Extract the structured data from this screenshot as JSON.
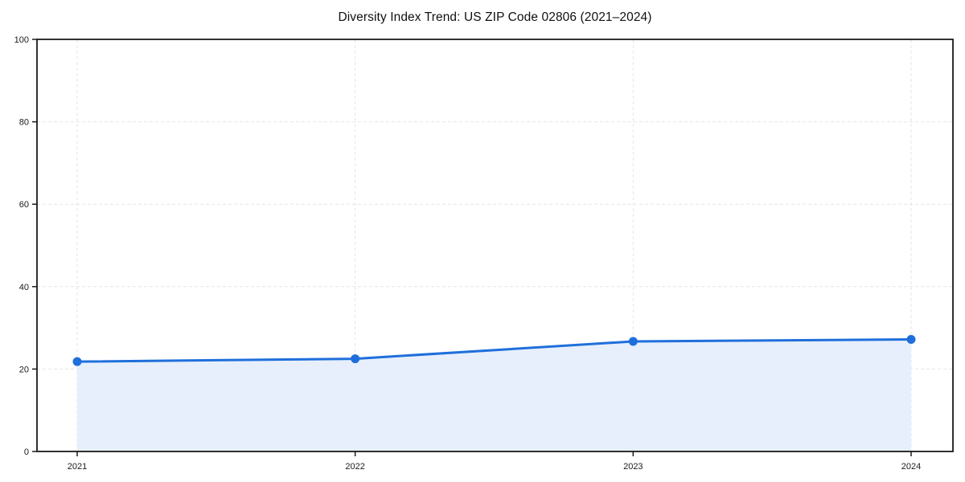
{
  "chart_data": {
    "type": "line",
    "title": "Diversity Index Trend: US ZIP Code 02806 (2021–2024)",
    "x": [
      2021,
      2022,
      2023,
      2024
    ],
    "series": [
      {
        "name": "Diversity Index",
        "values": [
          21.8,
          22.5,
          26.7,
          27.2
        ]
      }
    ],
    "ylim": [
      0,
      100
    ],
    "yticks": [
      0,
      20,
      40,
      60,
      80,
      100
    ],
    "grid": true,
    "grid_style": "dashed",
    "frame": true,
    "legend": "none",
    "area_fill": true,
    "colors": {
      "line": "#1f6fdb",
      "marker": "#1f6fdb",
      "area_fill": "#e7effc",
      "gridline": "#e6e6e6",
      "frame": "#1a1a1a",
      "tick_text": "#1a1a1a",
      "title_text": "#111111",
      "background": "#ffffff"
    }
  }
}
